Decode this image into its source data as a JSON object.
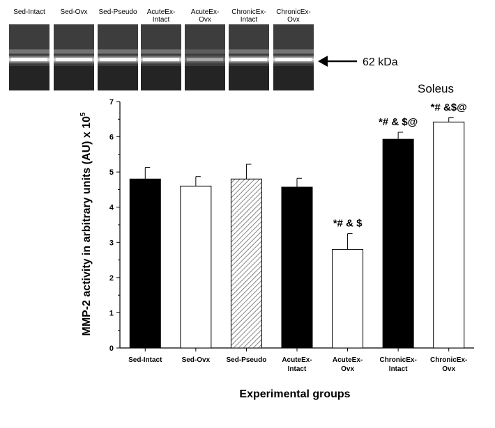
{
  "blot": {
    "lanes": [
      {
        "label": "Sed-Intact",
        "band": 0.9
      },
      {
        "label": "Sed-Ovx",
        "band": 0.85
      },
      {
        "label": "Sed-Pseudo",
        "band": 0.85
      },
      {
        "label": "AcuteEx-Intact",
        "band": 0.85
      },
      {
        "label": "AcuteEx-Ovx",
        "band": 0.35
      },
      {
        "label": "ChronicEx-Intact",
        "band": 0.9
      },
      {
        "label": "ChronicEx-Ovx",
        "band": 0.9
      }
    ],
    "marker_label": "62 kDa"
  },
  "chart_data": {
    "type": "bar",
    "title": "Soleus",
    "xlabel": "Experimental groups",
    "ylabel": "MMP-2 activity in arbitrary units (AU) x 10",
    "ylabel_superscript": "5",
    "ylim": [
      0,
      7
    ],
    "yticks": [
      0,
      1,
      2,
      3,
      4,
      5,
      6,
      7
    ],
    "grid": false,
    "categories": [
      "Sed-Intact",
      "Sed-Ovx",
      "Sed-Pseudo",
      "AcuteEx-Intact",
      "AcuteEx-Ovx",
      "ChronicEx-Intact",
      "ChronicEx-Ovx"
    ],
    "values": [
      4.8,
      4.6,
      4.8,
      4.57,
      2.8,
      5.93,
      6.42
    ],
    "errors": [
      0.33,
      0.27,
      0.42,
      0.25,
      0.45,
      0.2,
      0.13
    ],
    "fills": [
      "solid-black",
      "white",
      "hatched",
      "solid-black",
      "white",
      "solid-black",
      "white"
    ],
    "significance": [
      "",
      "",
      "",
      "",
      "*# & $",
      "*# & $@",
      "*# &$@"
    ],
    "colors": {
      "black": "#000000",
      "white": "#ffffff"
    }
  }
}
